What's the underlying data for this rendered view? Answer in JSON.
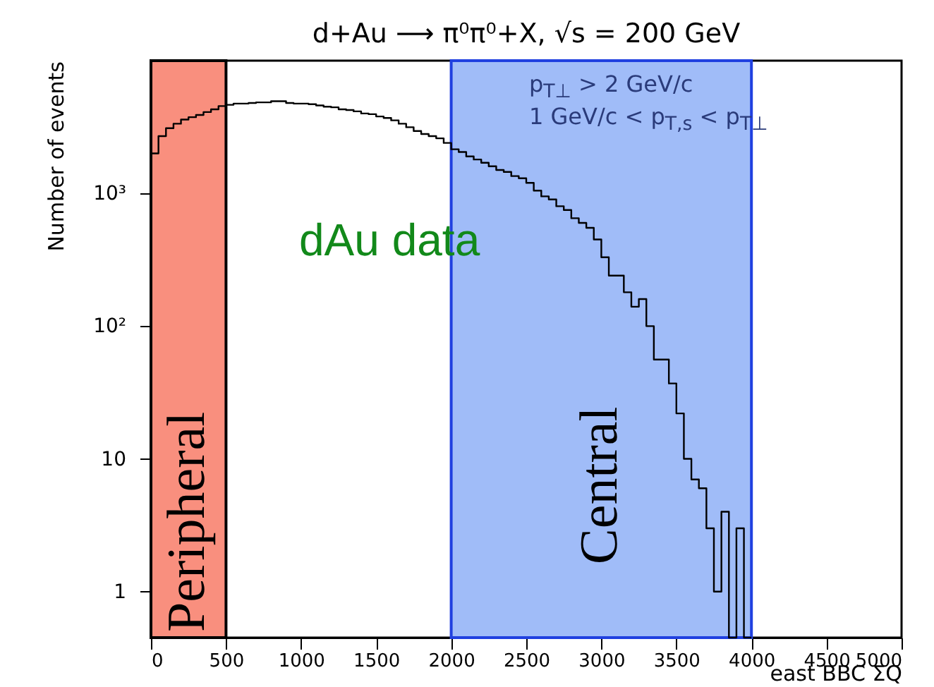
{
  "chart_data": {
    "type": "histogram",
    "title": "d+Au ⟶ π⁰π⁰+X, √s = 200 GeV",
    "xlabel": "east BBC ΣQ",
    "ylabel": "Number of events",
    "log": "y",
    "color": "#000000",
    "bins": [
      0,
      50,
      100,
      150,
      200,
      250,
      300,
      350,
      400,
      450,
      500,
      550,
      600,
      650,
      700,
      750,
      800,
      850,
      900,
      950,
      1000,
      1050,
      1100,
      1150,
      1200,
      1250,
      1300,
      1350,
      1400,
      1450,
      1500,
      1550,
      1600,
      1650,
      1700,
      1750,
      1800,
      1850,
      1900,
      1950,
      2000,
      2050,
      2100,
      2150,
      2200,
      2250,
      2300,
      2350,
      2400,
      2450,
      2500,
      2550,
      2600,
      2650,
      2700,
      2750,
      2800,
      2850,
      2900,
      2950,
      3000,
      3050,
      3100,
      3150,
      3200,
      3250,
      3300,
      3350,
      3400,
      3450,
      3500,
      3550,
      3600,
      3650,
      3700,
      3750,
      3800,
      3850,
      3900,
      3950,
      4000
    ],
    "values": [
      2000,
      2700,
      3100,
      3350,
      3600,
      3750,
      3900,
      4100,
      4300,
      4550,
      4650,
      4750,
      4750,
      4800,
      4850,
      4850,
      4950,
      4950,
      4800,
      4750,
      4750,
      4700,
      4600,
      4500,
      4450,
      4300,
      4250,
      4150,
      4000,
      3950,
      3800,
      3700,
      3550,
      3350,
      3150,
      2950,
      2800,
      2700,
      2600,
      2400,
      2150,
      2050,
      1900,
      1800,
      1700,
      1600,
      1500,
      1450,
      1350,
      1300,
      1200,
      1050,
      950,
      900,
      800,
      750,
      650,
      600,
      550,
      450,
      330,
      240,
      240,
      180,
      140,
      160,
      100,
      56,
      56,
      37,
      22,
      10,
      7,
      6,
      3,
      1,
      4,
      null,
      3,
      null
    ],
    "xlim": [
      0,
      5000
    ],
    "xticks": [
      0,
      500,
      1000,
      1500,
      2000,
      2500,
      3000,
      3500,
      4000,
      4500,
      5000
    ],
    "ylim": [
      0.45,
      10000
    ],
    "yticks": [
      1,
      10,
      {
        "value": 100,
        "label": "10²"
      },
      {
        "value": 1000,
        "label": "10³"
      }
    ],
    "bands": [
      {
        "axis": "x",
        "from": 0,
        "to": 500,
        "label": "Peripheral",
        "color": "#f98f7e"
      },
      {
        "axis": "x",
        "from": 2000,
        "to": 4000,
        "label": "Central",
        "color": "#a0bcf8"
      }
    ],
    "annotations": [
      "p$_{T⊥}$ > 2 GeV/c",
      "1 GeV/c < p$_{T,s}$ < p$_{T⊥}$",
      "dAu data"
    ]
  }
}
